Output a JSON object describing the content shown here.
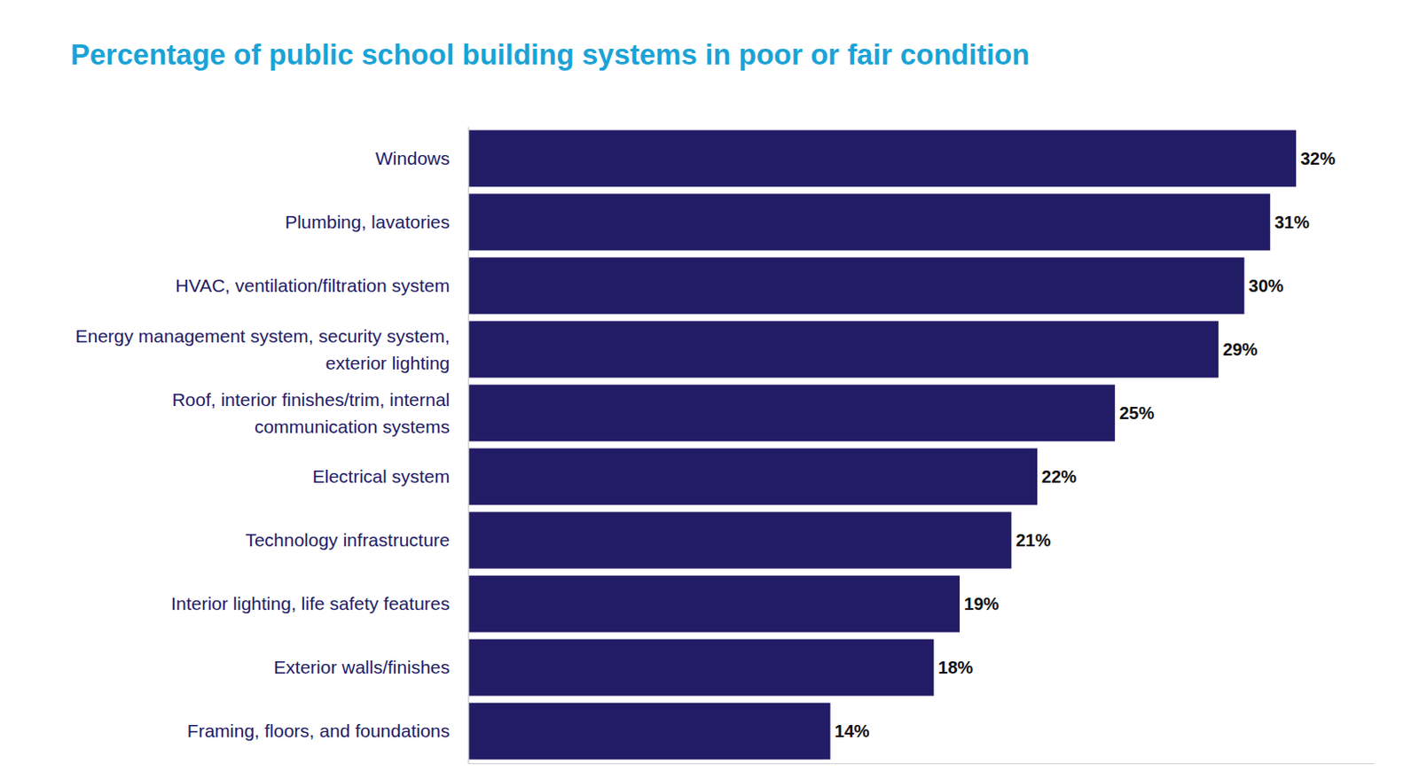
{
  "chart_data": {
    "type": "bar",
    "orientation": "horizontal",
    "title": "Percentage of public school building systems in poor or fair condition",
    "categories": [
      "Windows",
      "Plumbing, lavatories",
      "HVAC, ventilation/filtration system",
      "Energy management system, security system, exterior lighting",
      "Roof, interior finishes/trim, internal communication systems",
      "Electrical system",
      "Technology infrastructure",
      "Interior lighting, life safety features",
      "Exterior walls/finishes",
      "Framing, floors, and foundations"
    ],
    "values": [
      32,
      31,
      30,
      29,
      25,
      22,
      21,
      19,
      18,
      14
    ],
    "value_labels": [
      "32%",
      "31%",
      "30%",
      "29%",
      "25%",
      "22%",
      "21%",
      "19%",
      "18%",
      "14%"
    ],
    "color": "#221b66",
    "xlim": [
      0,
      35
    ],
    "grid": false,
    "data_labels": true,
    "tick_labels": "y"
  }
}
